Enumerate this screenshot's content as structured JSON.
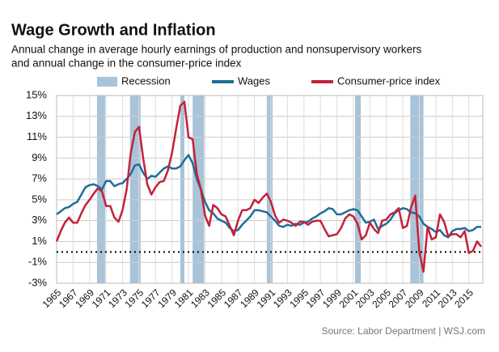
{
  "chart_data": {
    "type": "line",
    "title": "Wage Growth and Inflation",
    "subtitle": [
      "Annual change in average hourly earnings of production and nonsupervisory workers",
      "and annual change in the consumer-price index"
    ],
    "source": "Source: Labor Department  |  WSJ.com",
    "grid": true,
    "xlim": [
      1965,
      2016.7
    ],
    "xticks": [
      1965,
      1967,
      1969,
      1971,
      1973,
      1975,
      1977,
      1979,
      1981,
      1983,
      1985,
      1987,
      1989,
      1991,
      1993,
      1995,
      1997,
      1999,
      2001,
      2003,
      2005,
      2007,
      2009,
      2011,
      2013,
      2015
    ],
    "ylim": [
      -3,
      15
    ],
    "yticks": [
      {
        "value": 15,
        "label": "15%"
      },
      {
        "value": 13,
        "label": "13%"
      },
      {
        "value": 11,
        "label": "11%"
      },
      {
        "value": 9,
        "label": "9%"
      },
      {
        "value": 7,
        "label": "7%"
      },
      {
        "value": 5,
        "label": "5%"
      },
      {
        "value": 3,
        "label": "3%"
      },
      {
        "value": 1,
        "label": "1%"
      },
      {
        "value": -1,
        "label": "-1%"
      },
      {
        "value": -3,
        "label": "-3%"
      }
    ],
    "recessions": {
      "name": "Recession",
      "color": "#a9c3d8",
      "periods": [
        [
          1969.9,
          1970.9
        ],
        [
          1973.9,
          1975.2
        ],
        [
          1980.0,
          1980.5
        ],
        [
          1981.5,
          1982.9
        ],
        [
          1990.5,
          1991.2
        ],
        [
          2001.2,
          2001.9
        ],
        [
          2007.9,
          2009.5
        ]
      ]
    },
    "x": [
      1965,
      1965.5,
      1966,
      1966.5,
      1967,
      1967.5,
      1968,
      1968.5,
      1969,
      1969.5,
      1970,
      1970.5,
      1971,
      1971.5,
      1972,
      1972.5,
      1973,
      1973.5,
      1974,
      1974.5,
      1975,
      1975.5,
      1976,
      1976.5,
      1977,
      1977.5,
      1978,
      1978.5,
      1979,
      1979.5,
      1980,
      1980.5,
      1981,
      1981.5,
      1982,
      1982.5,
      1983,
      1983.5,
      1984,
      1984.5,
      1985,
      1985.5,
      1986,
      1986.5,
      1987,
      1987.5,
      1988,
      1988.5,
      1989,
      1989.5,
      1990,
      1990.5,
      1991,
      1991.5,
      1992,
      1992.5,
      1993,
      1993.5,
      1994,
      1994.5,
      1995,
      1995.5,
      1996,
      1996.5,
      1997,
      1997.5,
      1998,
      1998.5,
      1999,
      1999.5,
      2000,
      2000.5,
      2001,
      2001.5,
      2002,
      2002.5,
      2003,
      2003.5,
      2004,
      2004.5,
      2005,
      2005.5,
      2006,
      2006.5,
      2007,
      2007.5,
      2008,
      2008.5,
      2009,
      2009.5,
      2010,
      2010.5,
      2011,
      2011.5,
      2012,
      2012.5,
      2013,
      2013.5,
      2014,
      2014.5,
      2015,
      2015.5,
      2016,
      2016.5
    ],
    "series": [
      {
        "name": "Wages",
        "color": "#1f6e96",
        "values": [
          3.6,
          3.9,
          4.2,
          4.3,
          4.6,
          4.8,
          5.5,
          6.2,
          6.4,
          6.5,
          6.3,
          6.0,
          6.8,
          6.8,
          6.3,
          6.5,
          6.6,
          7.0,
          7.5,
          8.3,
          8.4,
          7.6,
          7.0,
          7.3,
          7.2,
          7.6,
          8.0,
          8.2,
          8.0,
          8.0,
          8.2,
          8.8,
          9.3,
          8.5,
          7.0,
          6.0,
          4.8,
          4.0,
          3.7,
          3.2,
          3.0,
          2.8,
          2.3,
          2.0,
          2.1,
          2.6,
          3.0,
          3.4,
          4.0,
          4.0,
          3.9,
          3.8,
          3.4,
          3.0,
          2.5,
          2.4,
          2.6,
          2.5,
          2.7,
          2.6,
          2.8,
          2.9,
          3.2,
          3.4,
          3.7,
          3.9,
          4.2,
          4.1,
          3.6,
          3.6,
          3.8,
          4.0,
          4.1,
          4.0,
          3.4,
          2.8,
          2.9,
          3.1,
          2.2,
          2.5,
          2.7,
          3.1,
          3.7,
          4.0,
          4.2,
          4.1,
          3.8,
          3.7,
          3.4,
          2.7,
          2.4,
          2.2,
          1.9,
          2.1,
          1.6,
          1.4,
          2.0,
          2.2,
          2.2,
          2.3,
          2.0,
          2.1,
          2.4,
          2.4
        ]
      },
      {
        "name": "Consumer-price index",
        "color": "#c4213a",
        "values": [
          1.0,
          2.0,
          2.8,
          3.3,
          2.8,
          2.8,
          3.7,
          4.5,
          5.0,
          5.6,
          6.1,
          5.8,
          4.4,
          4.4,
          3.3,
          2.9,
          4.0,
          6.0,
          9.5,
          11.5,
          12.0,
          9.0,
          6.5,
          5.5,
          6.2,
          6.7,
          6.8,
          7.8,
          9.5,
          11.8,
          14.0,
          14.4,
          11.0,
          10.8,
          7.5,
          6.0,
          3.5,
          2.5,
          4.5,
          4.2,
          3.6,
          3.4,
          2.5,
          1.6,
          3.0,
          4.0,
          4.0,
          4.2,
          5.0,
          4.7,
          5.2,
          5.6,
          4.8,
          3.5,
          2.8,
          3.1,
          3.0,
          2.8,
          2.5,
          2.9,
          2.9,
          2.6,
          2.9,
          3.0,
          3.0,
          2.2,
          1.5,
          1.6,
          1.7,
          2.3,
          3.2,
          3.6,
          3.4,
          2.7,
          1.2,
          1.6,
          2.8,
          2.2,
          1.8,
          3.0,
          3.1,
          3.6,
          3.8,
          4.2,
          2.3,
          2.5,
          4.3,
          5.4,
          0.0,
          -1.9,
          2.4,
          1.2,
          1.4,
          3.6,
          2.9,
          1.5,
          1.7,
          1.7,
          1.4,
          2.0,
          -0.1,
          0.1,
          1.0,
          0.5
        ]
      }
    ]
  }
}
